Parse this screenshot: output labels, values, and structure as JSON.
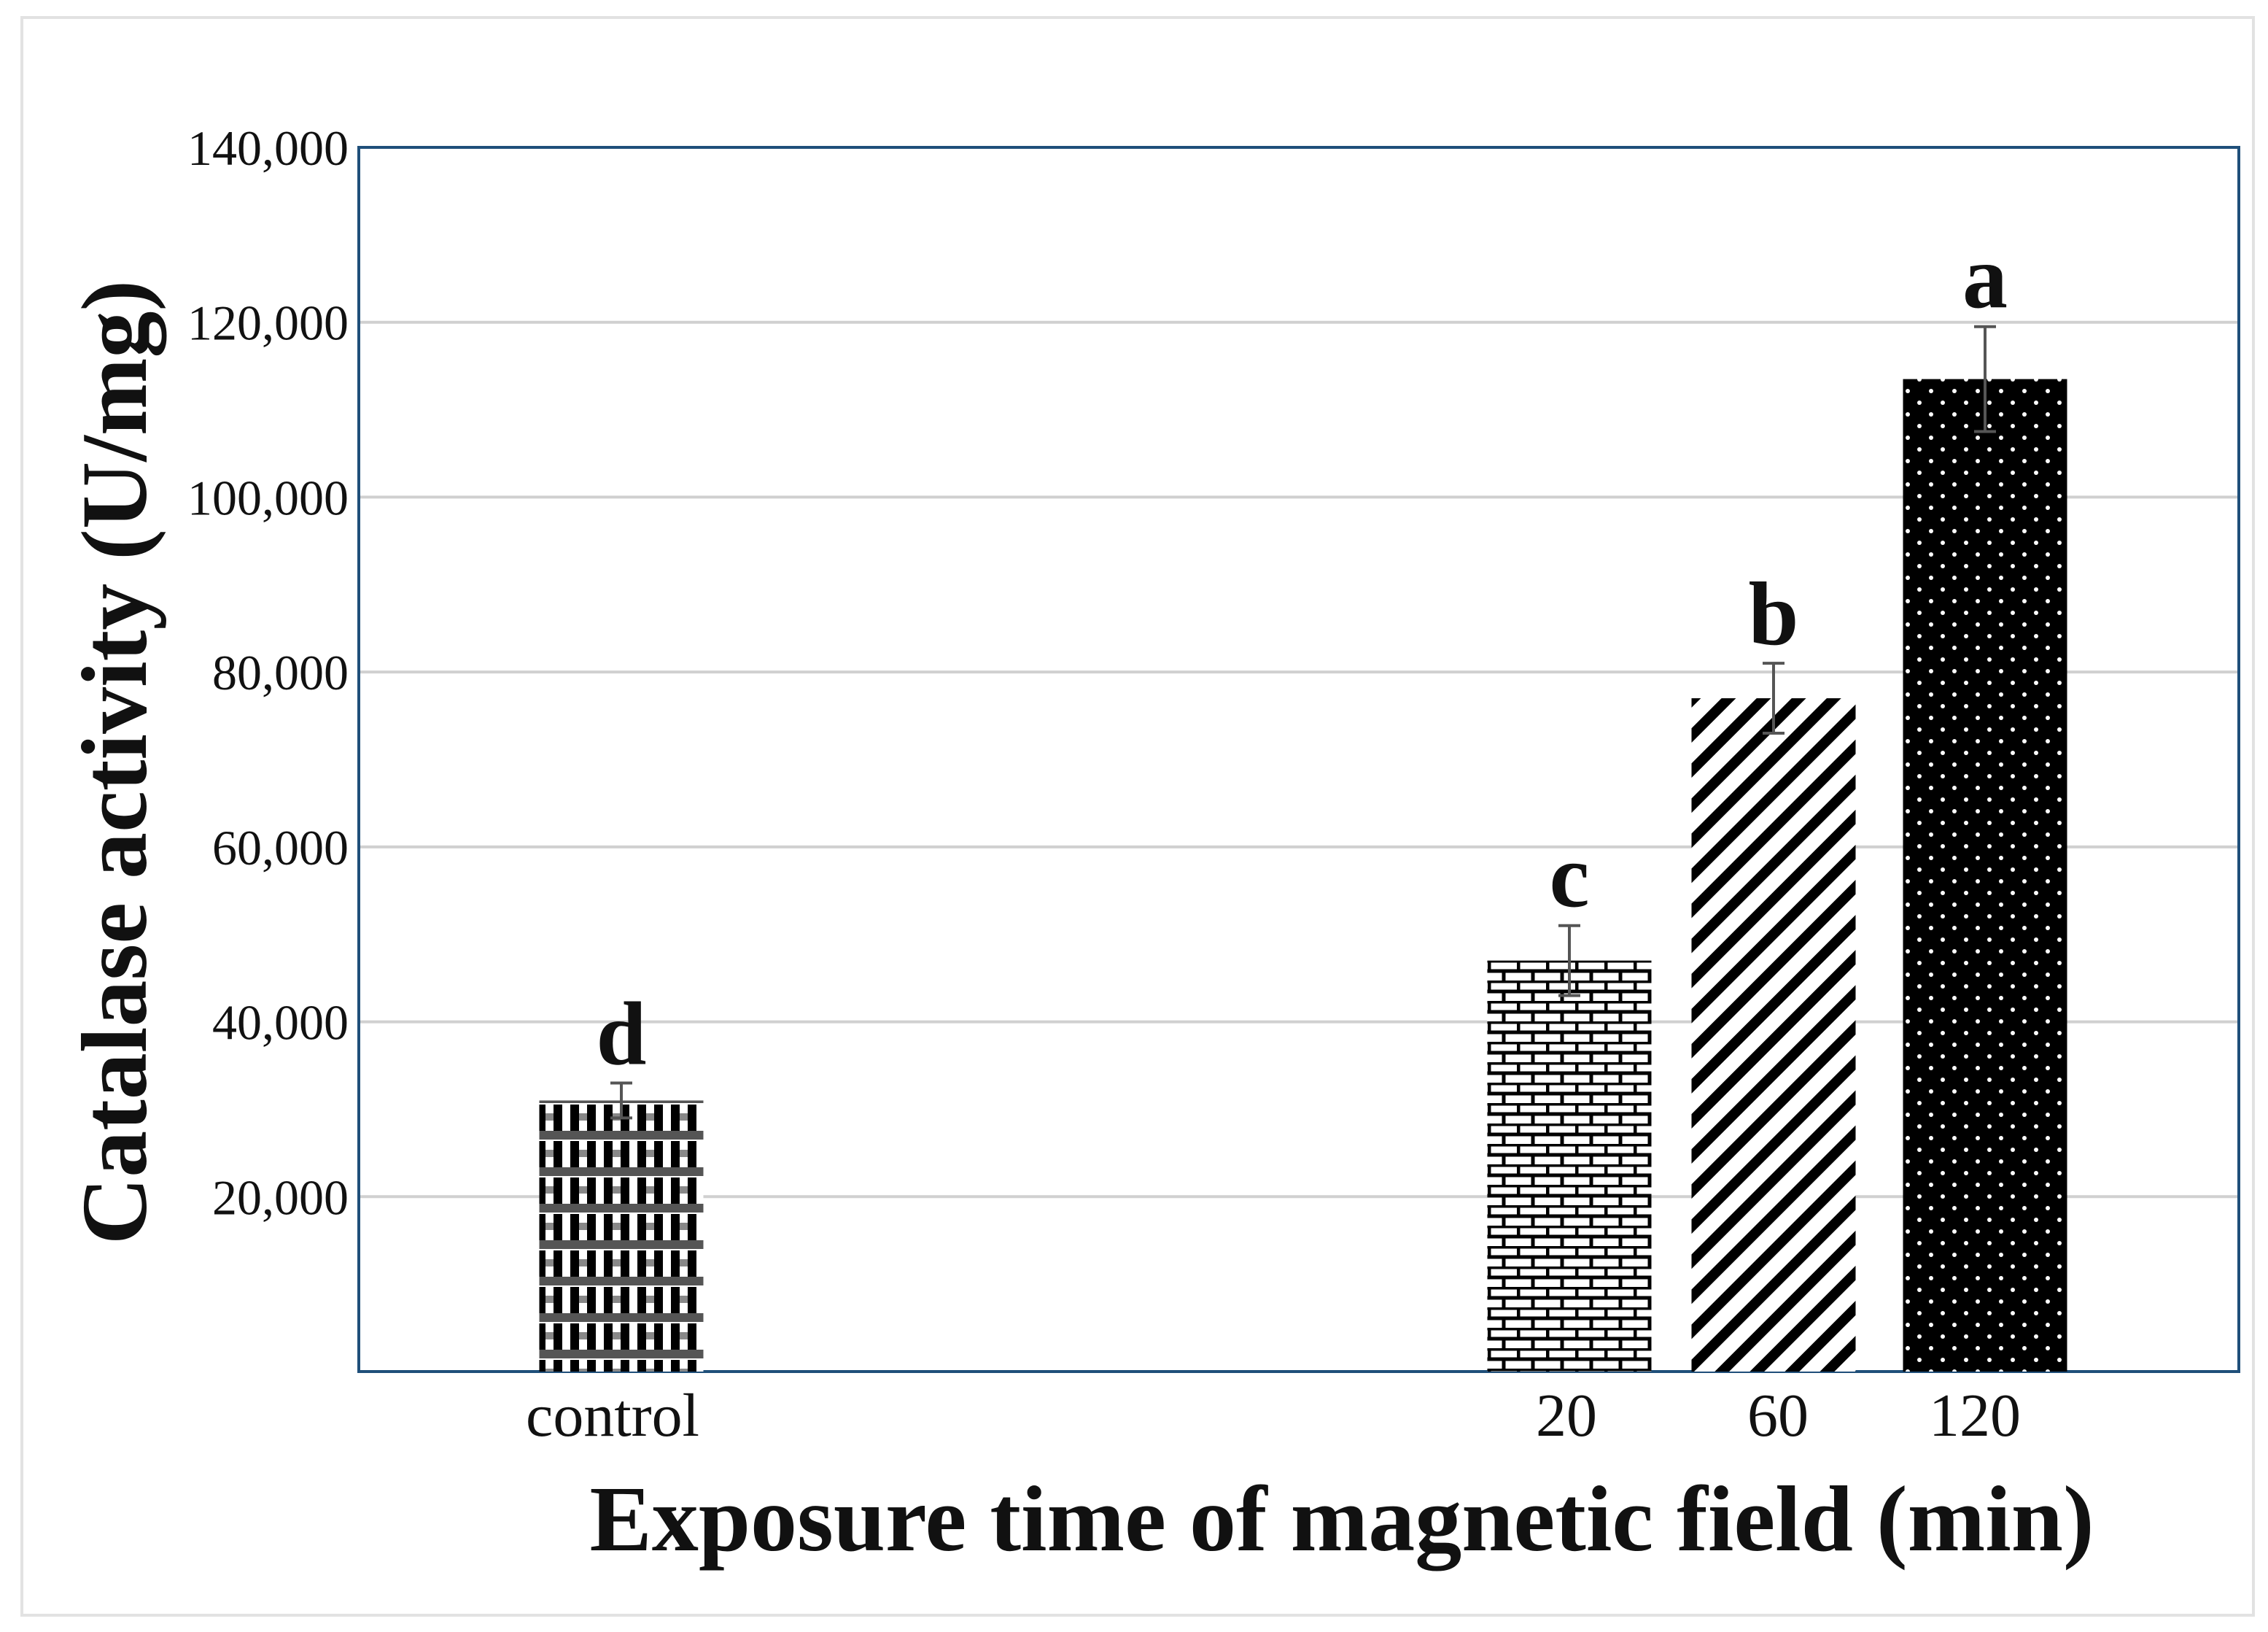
{
  "chart_data": {
    "type": "bar",
    "title": "",
    "xlabel": "Exposure time of magnetic field (min)",
    "ylabel": "Catalase activity (U/mg)",
    "ylim": [
      0,
      140000
    ],
    "yticks": [
      20000,
      40000,
      60000,
      80000,
      100000,
      120000,
      140000
    ],
    "ytick_labels": [
      "20,000",
      "40,000",
      "60,000",
      "80,000",
      "100,000",
      "120,000",
      "140,000"
    ],
    "grid": true,
    "categories": [
      "control",
      "20",
      "60",
      "120"
    ],
    "values": [
      31000,
      47000,
      77000,
      113500
    ],
    "errors": [
      2000,
      4000,
      4000,
      6000
    ],
    "significance_letters": [
      "d",
      "c",
      "b",
      "a"
    ],
    "bar_patterns": [
      "checker",
      "brick",
      "diagonal-stripes",
      "dots"
    ],
    "colors": {
      "bar": "#000000",
      "frame": "#1f4f7a",
      "grid": "#d0d0d0"
    }
  }
}
